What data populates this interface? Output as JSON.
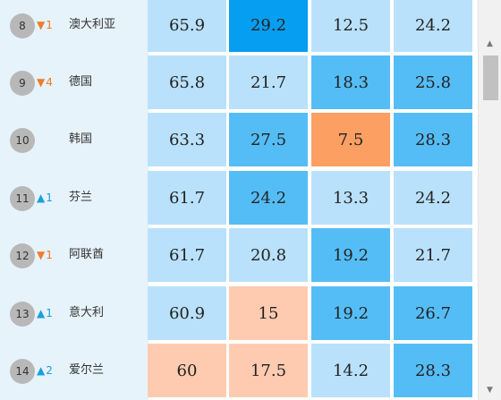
{
  "colors": {
    "light": "#b9e1fb",
    "medium": "#55bdf6",
    "dark": "#069ef0",
    "orange": "#fb9f63",
    "peach": "#ffcbb0",
    "left_bg": "#e6f3fb"
  },
  "rows": [
    {
      "rank": "8",
      "direction": "down",
      "change": "1",
      "country": "澳大利亚",
      "cells": [
        {
          "value": "65.9",
          "color": "light"
        },
        {
          "value": "29.2",
          "color": "dark"
        },
        {
          "value": "12.5",
          "color": "light"
        },
        {
          "value": "24.2",
          "color": "light"
        }
      ]
    },
    {
      "rank": "9",
      "direction": "down",
      "change": "4",
      "country": "德国",
      "cells": [
        {
          "value": "65.8",
          "color": "light"
        },
        {
          "value": "21.7",
          "color": "light"
        },
        {
          "value": "18.3",
          "color": "medium"
        },
        {
          "value": "25.8",
          "color": "medium"
        }
      ]
    },
    {
      "rank": "10",
      "direction": "",
      "change": "",
      "country": "韩国",
      "cells": [
        {
          "value": "63.3",
          "color": "light"
        },
        {
          "value": "27.5",
          "color": "medium"
        },
        {
          "value": "7.5",
          "color": "orange"
        },
        {
          "value": "28.3",
          "color": "medium"
        }
      ]
    },
    {
      "rank": "11",
      "direction": "up",
      "change": "1",
      "country": "芬兰",
      "cells": [
        {
          "value": "61.7",
          "color": "light"
        },
        {
          "value": "24.2",
          "color": "medium"
        },
        {
          "value": "13.3",
          "color": "light"
        },
        {
          "value": "24.2",
          "color": "light"
        }
      ]
    },
    {
      "rank": "12",
      "direction": "down",
      "change": "1",
      "country": "阿联酋",
      "cells": [
        {
          "value": "61.7",
          "color": "light"
        },
        {
          "value": "20.8",
          "color": "light"
        },
        {
          "value": "19.2",
          "color": "medium"
        },
        {
          "value": "21.7",
          "color": "light"
        }
      ]
    },
    {
      "rank": "13",
      "direction": "up",
      "change": "1",
      "country": "意大利",
      "cells": [
        {
          "value": "60.9",
          "color": "light"
        },
        {
          "value": "15",
          "color": "peach"
        },
        {
          "value": "19.2",
          "color": "medium"
        },
        {
          "value": "26.7",
          "color": "medium"
        }
      ]
    },
    {
      "rank": "14",
      "direction": "up",
      "change": "2",
      "country": "爱尔兰",
      "cells": [
        {
          "value": "60",
          "color": "peach"
        },
        {
          "value": "17.5",
          "color": "peach"
        },
        {
          "value": "14.2",
          "color": "light"
        },
        {
          "value": "28.3",
          "color": "medium"
        }
      ]
    }
  ],
  "scrollbar": {
    "up_icon": "triangle-up-icon",
    "down_icon": "triangle-down-icon"
  }
}
